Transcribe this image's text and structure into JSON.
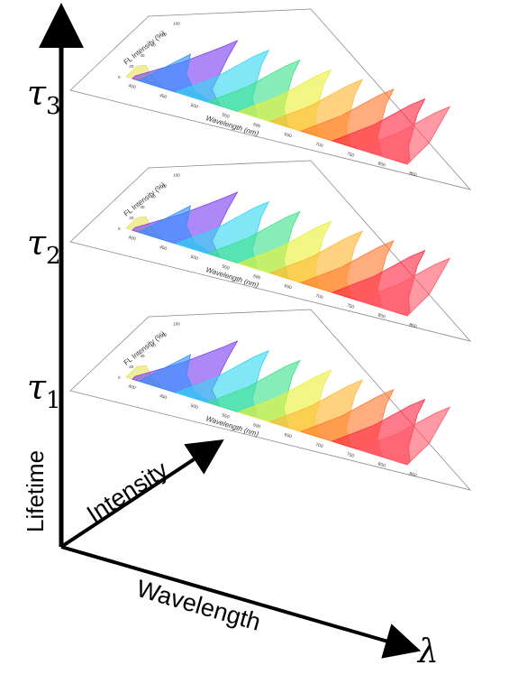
{
  "axes": {
    "vertical_label": "Lifetime",
    "diagonal_label": "Intensity",
    "horizontal_label": "Wavelength",
    "horizontal_symbol": "λ",
    "line_color": "#000000"
  },
  "layers": [
    {
      "tau_symbol": "τ",
      "tau_subscript": "3"
    },
    {
      "tau_symbol": "τ",
      "tau_subscript": "2"
    },
    {
      "tau_symbol": "τ",
      "tau_subscript": "1"
    }
  ],
  "chart_data": [
    {
      "type": "area",
      "ylabel": "FL Intensity (%)",
      "xlabel": "Wavelength (nm)",
      "x_ticks": [
        "400",
        "450",
        "500",
        "550",
        "600",
        "650",
        "700",
        "750",
        "800",
        "850"
      ],
      "y_ticks": [
        "0",
        "20",
        "40",
        "60",
        "80",
        "100"
      ],
      "xlim": [
        400,
        850
      ],
      "ylim": [
        0,
        100
      ],
      "series_colors": [
        "#e6e05a",
        "#7b3ff0",
        "#2f8fff",
        "#33d6f0",
        "#3ee08a",
        "#e8f03a",
        "#ffb733",
        "#ff7a2e",
        "#ff2a45",
        "#ff5a6a"
      ],
      "series": [
        {
          "peak": 410,
          "values": [
            [
              400,
              20
            ],
            [
              410,
              25
            ],
            [
              430,
              12
            ],
            [
              460,
              0
            ]
          ]
        },
        {
          "peak": 490,
          "values": [
            [
              410,
              5
            ],
            [
              450,
              45
            ],
            [
              480,
              85
            ],
            [
              490,
              100
            ],
            [
              500,
              70
            ],
            [
              520,
              20
            ],
            [
              550,
              0
            ]
          ]
        },
        {
          "peak": 450,
          "values": [
            [
              420,
              0
            ],
            [
              440,
              40
            ],
            [
              450,
              60
            ],
            [
              470,
              30
            ],
            [
              500,
              10
            ],
            [
              540,
              0
            ]
          ]
        },
        {
          "peak": 540,
          "values": [
            [
              480,
              0
            ],
            [
              510,
              40
            ],
            [
              530,
              85
            ],
            [
              540,
              100
            ],
            [
              550,
              75
            ],
            [
              580,
              25
            ],
            [
              610,
              0
            ]
          ]
        },
        {
          "peak": 590,
          "values": [
            [
              530,
              0
            ],
            [
              560,
              40
            ],
            [
              580,
              85
            ],
            [
              590,
              100
            ],
            [
              600,
              75
            ],
            [
              630,
              25
            ],
            [
              660,
              0
            ]
          ]
        },
        {
          "peak": 640,
          "values": [
            [
              580,
              0
            ],
            [
              610,
              40
            ],
            [
              630,
              85
            ],
            [
              640,
              100
            ],
            [
              650,
              75
            ],
            [
              680,
              25
            ],
            [
              710,
              0
            ]
          ]
        },
        {
          "peak": 690,
          "values": [
            [
              630,
              0
            ],
            [
              660,
              40
            ],
            [
              680,
              85
            ],
            [
              690,
              100
            ],
            [
              700,
              75
            ],
            [
              730,
              25
            ],
            [
              760,
              0
            ]
          ]
        },
        {
          "peak": 740,
          "values": [
            [
              680,
              0
            ],
            [
              710,
              40
            ],
            [
              730,
              85
            ],
            [
              740,
              100
            ],
            [
              750,
              75
            ],
            [
              780,
              25
            ],
            [
              810,
              0
            ]
          ]
        },
        {
          "peak": 790,
          "values": [
            [
              730,
              0
            ],
            [
              760,
              40
            ],
            [
              780,
              85
            ],
            [
              790,
              100
            ],
            [
              800,
              75
            ],
            [
              830,
              25
            ],
            [
              850,
              5
            ]
          ]
        },
        {
          "peak": 830,
          "values": [
            [
              770,
              0
            ],
            [
              800,
              40
            ],
            [
              820,
              85
            ],
            [
              830,
              100
            ],
            [
              840,
              70
            ],
            [
              850,
              40
            ]
          ]
        }
      ]
    }
  ]
}
